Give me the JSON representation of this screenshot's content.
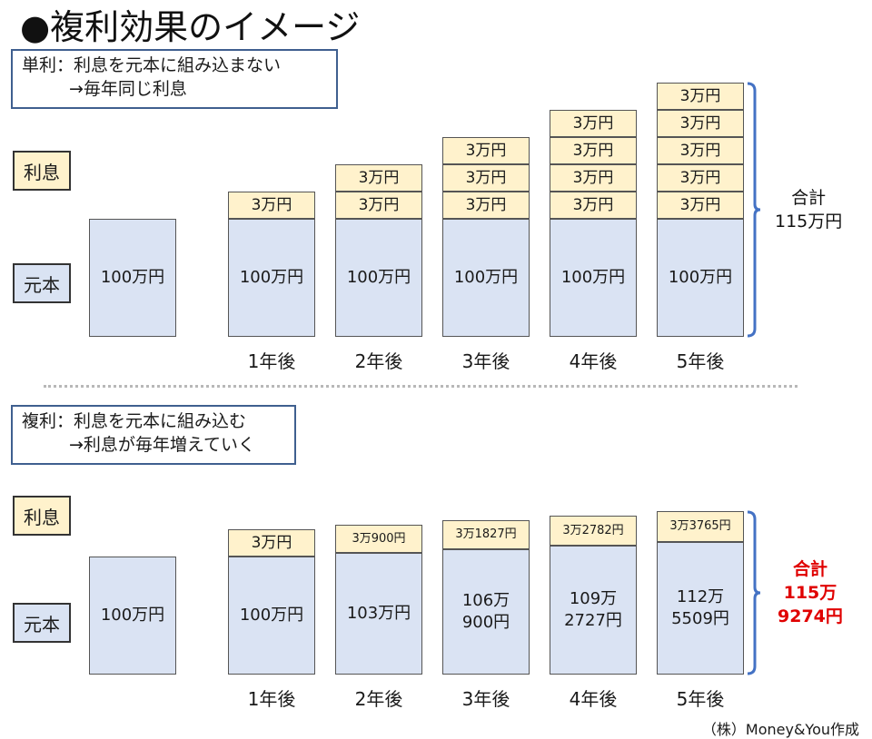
{
  "title": "●複利効果のイメージ",
  "credit": "（株）Money&You作成",
  "colors": {
    "principal": "#dae3f3",
    "interest": "#fff2cc",
    "border": "#555555",
    "brace": "#4472c4",
    "highlight": "#e00000"
  },
  "chart_data": [
    {
      "type": "bar",
      "stacked": true,
      "explanation": {
        "line1": "単利：利息を元本に組み込まない",
        "line2": "→毎年同じ利息"
      },
      "legend": {
        "interest": "利息",
        "principal": "元本"
      },
      "categories": [
        "",
        "1年後",
        "2年後",
        "3年後",
        "4年後",
        "5年後"
      ],
      "principal_values": [
        100,
        100,
        100,
        100,
        100,
        100
      ],
      "principal_labels": [
        "100万円",
        "100万円",
        "100万円",
        "100万円",
        "100万円",
        "100万円"
      ],
      "interest_values": [
        [],
        [
          3
        ],
        [
          3,
          3
        ],
        [
          3,
          3,
          3
        ],
        [
          3,
          3,
          3,
          3
        ],
        [
          3,
          3,
          3,
          3,
          3
        ]
      ],
      "interest_labels": [
        [],
        [
          "3万円"
        ],
        [
          "3万円",
          "3万円"
        ],
        [
          "3万円",
          "3万円",
          "3万円"
        ],
        [
          "3万円",
          "3万円",
          "3万円",
          "3万円"
        ],
        [
          "3万円",
          "3万円",
          "3万円",
          "3万円",
          "3万円"
        ]
      ],
      "unit": "万円",
      "total_label": "合計",
      "total_value": "115万円"
    },
    {
      "type": "bar",
      "stacked": true,
      "explanation": {
        "line1": "複利：利息を元本に組み込む",
        "line2": "→利息が毎年増えていく"
      },
      "legend": {
        "interest": "利息",
        "principal": "元本"
      },
      "categories": [
        "",
        "1年後",
        "2年後",
        "3年後",
        "4年後",
        "5年後"
      ],
      "principal_values": [
        100,
        100,
        103,
        106.09,
        109.2727,
        112.5509
      ],
      "principal_labels": [
        "100万円",
        "100万円",
        "103万円",
        "106万\n900円",
        "109万\n2727円",
        "112万\n5509円"
      ],
      "interest_values": [
        [],
        [
          3
        ],
        [
          3.09
        ],
        [
          3.1827
        ],
        [
          3.2782
        ],
        [
          3.3765
        ]
      ],
      "interest_labels": [
        [],
        [
          "3万円"
        ],
        [
          "3万900円"
        ],
        [
          "3万1827円"
        ],
        [
          "3万2782円"
        ],
        [
          "3万3765円"
        ]
      ],
      "unit": "万円",
      "total_label": "合計",
      "total_value": "115万\n9274円"
    }
  ]
}
